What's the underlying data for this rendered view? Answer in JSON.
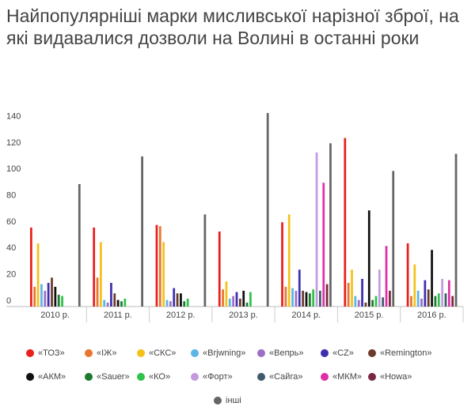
{
  "chart_data": {
    "type": "bar",
    "title": "Найпопулярніші марки мисливської нарізної зброї, на які видавалися дозволи на Волині в останні роки",
    "categories": [
      "2010 р.",
      "2011 р.",
      "2012 р.",
      "2013 р.",
      "2014 р.",
      "2015 р.",
      "2016 р."
    ],
    "ylim": [
      0,
      150
    ],
    "yticks": [
      0,
      20,
      40,
      60,
      80,
      100,
      120,
      140
    ],
    "grid": false,
    "series": [
      {
        "name": "«ТОЗ»",
        "color": "#e8201e",
        "values": [
          60,
          60,
          62,
          57,
          64,
          128,
          48
        ]
      },
      {
        "name": "«ІЖ»",
        "color": "#e8762e",
        "values": [
          15,
          22,
          61,
          13,
          15,
          18,
          8
        ]
      },
      {
        "name": "«СКС»",
        "color": "#f4c11b",
        "values": [
          48,
          49,
          49,
          19,
          70,
          28,
          32
        ]
      },
      {
        "name": "«Brjwning»",
        "color": "#5bb5e6",
        "values": [
          17,
          5,
          5,
          6,
          14,
          8,
          12
        ]
      },
      {
        "name": "«Вепрь»",
        "color": "#9b6fc6",
        "values": [
          12,
          3,
          4,
          8,
          12,
          5,
          6
        ]
      },
      {
        "name": "«CZ»",
        "color": "#3d2fb0",
        "values": [
          18,
          18,
          14,
          11,
          28,
          21,
          20
        ]
      },
      {
        "name": "«Remington»",
        "color": "#6b3b2a",
        "values": [
          22,
          10,
          10,
          6,
          12,
          3,
          13
        ]
      },
      {
        "name": "«АКМ»",
        "color": "#111111",
        "values": [
          15,
          5,
          10,
          12,
          11,
          73,
          43
        ]
      },
      {
        "name": "«Sauer»",
        "color": "#1e7a2e",
        "values": [
          9,
          4,
          4,
          3,
          10,
          5,
          8
        ]
      },
      {
        "name": "«КО»",
        "color": "#2ec24a",
        "values": [
          8,
          6,
          6,
          11,
          13,
          8,
          10
        ]
      },
      {
        "name": "«Форт»",
        "color": "#c59be0",
        "values": [
          0,
          0,
          0,
          0,
          117,
          28,
          21
        ]
      },
      {
        "name": "«Сайга»",
        "color": "#3e5a6b",
        "values": [
          0,
          0,
          0,
          0,
          12,
          7,
          10
        ]
      },
      {
        "name": "«МКМ»",
        "color": "#e02fa8",
        "values": [
          0,
          0,
          0,
          0,
          94,
          46,
          20
        ]
      },
      {
        "name": "«Howa»",
        "color": "#7a2840",
        "values": [
          0,
          0,
          0,
          0,
          17,
          12,
          8
        ]
      },
      {
        "name": "інші",
        "color": "#666666",
        "values": [
          93,
          114,
          70,
          147,
          124,
          103,
          116
        ]
      }
    ]
  }
}
